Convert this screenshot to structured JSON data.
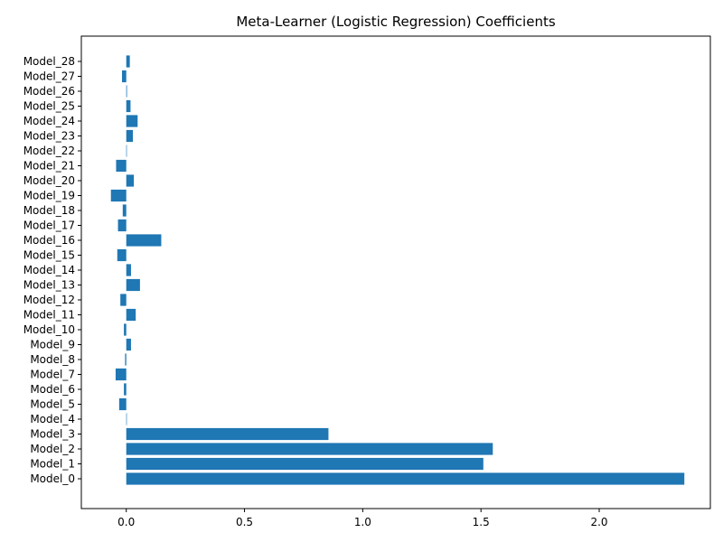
{
  "chart_data": {
    "type": "bar",
    "orientation": "horizontal",
    "title": "Meta-Learner (Logistic Regression) Coefficients",
    "xlabel": "",
    "ylabel": "",
    "categories": [
      "Model_0",
      "Model_1",
      "Model_2",
      "Model_3",
      "Model_4",
      "Model_5",
      "Model_6",
      "Model_7",
      "Model_8",
      "Model_9",
      "Model_10",
      "Model_11",
      "Model_12",
      "Model_13",
      "Model_14",
      "Model_15",
      "Model_16",
      "Model_17",
      "Model_18",
      "Model_19",
      "Model_20",
      "Model_21",
      "Model_22",
      "Model_23",
      "Model_24",
      "Model_25",
      "Model_26",
      "Model_27",
      "Model_28"
    ],
    "values": [
      2.36,
      1.51,
      1.55,
      0.855,
      0.0,
      -0.03,
      -0.01,
      -0.045,
      -0.005,
      0.02,
      -0.01,
      0.04,
      -0.025,
      0.058,
      0.02,
      -0.038,
      0.148,
      -0.035,
      -0.015,
      -0.065,
      0.032,
      -0.043,
      0.0,
      0.028,
      0.048,
      0.018,
      0.003,
      -0.018,
      0.015
    ],
    "xlim": [
      -0.19,
      2.47
    ],
    "xticks": [
      0.0,
      0.5,
      1.0,
      1.5,
      2.0
    ],
    "xtick_labels": [
      "0.0",
      "0.5",
      "1.0",
      "1.5",
      "2.0"
    ],
    "grid": false,
    "bar_color": "#1f77b4"
  }
}
